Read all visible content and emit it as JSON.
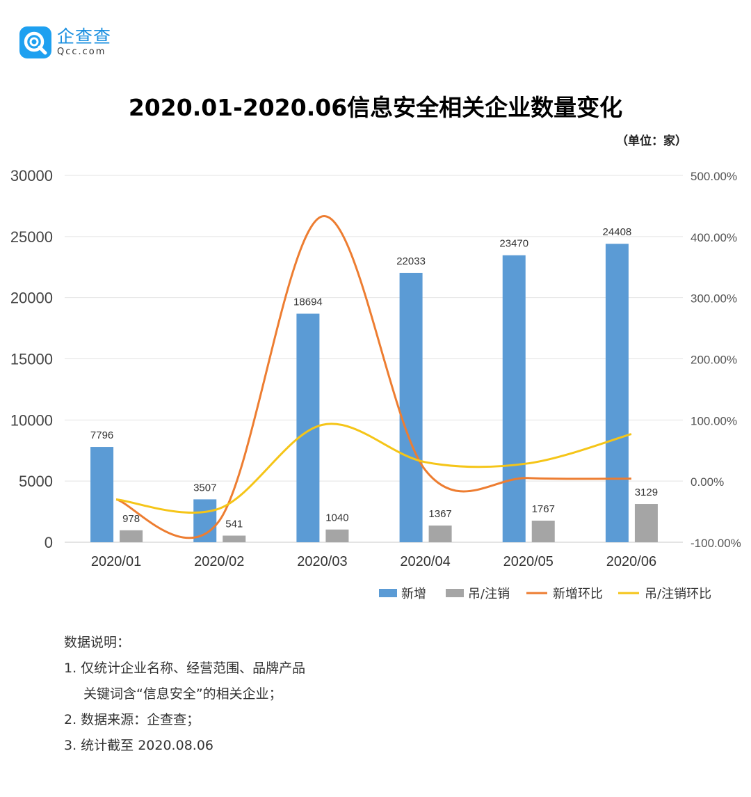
{
  "brand": {
    "name": "企查查",
    "domain": "Qcc.com",
    "color": "#1ea0f0"
  },
  "title": "2020.01-2020.06信息安全相关企业数量变化",
  "unit": "（单位：家）",
  "chart_data": {
    "type": "bar",
    "categories": [
      "2020/01",
      "2020/02",
      "2020/03",
      "2020/04",
      "2020/05",
      "2020/06"
    ],
    "series": [
      {
        "name": "新增",
        "kind": "bar",
        "axis": "left",
        "color": "#5b9bd5",
        "values": [
          7796,
          3507,
          18694,
          22033,
          23470,
          24408
        ]
      },
      {
        "name": "吊/注销",
        "kind": "bar",
        "axis": "left",
        "color": "#a5a5a5",
        "values": [
          978,
          541,
          1040,
          1367,
          1767,
          3129
        ]
      },
      {
        "name": "新增环比",
        "kind": "line",
        "axis": "right",
        "color": "#ed7d31",
        "values": [
          -30,
          -65,
          433,
          18,
          5,
          4
        ]
      },
      {
        "name": "吊/注销环比",
        "kind": "line",
        "axis": "right",
        "color": "#f5c518",
        "values": [
          -30,
          -45,
          92,
          31,
          29,
          77
        ]
      }
    ],
    "y_left": {
      "min": 0,
      "max": 30000,
      "ticks": [
        "0",
        "5000",
        "10000",
        "15000",
        "20000",
        "25000",
        "30000"
      ]
    },
    "y_right": {
      "min": -100,
      "max": 500,
      "ticks": [
        "-100.00%",
        "0.00%",
        "100.00%",
        "200.00%",
        "300.00%",
        "400.00%",
        "500.00%"
      ]
    },
    "grid": true,
    "legend_position": "bottom-right"
  },
  "notes": {
    "heading": "数据说明：",
    "line1a": "1. 仅统计企业名称、经营范围、品牌产品",
    "line1b": "关键词含“信息安全”的相关企业；",
    "line2": "2. 数据来源：企查查；",
    "line3": "3. 统计截至 2020.08.06"
  }
}
